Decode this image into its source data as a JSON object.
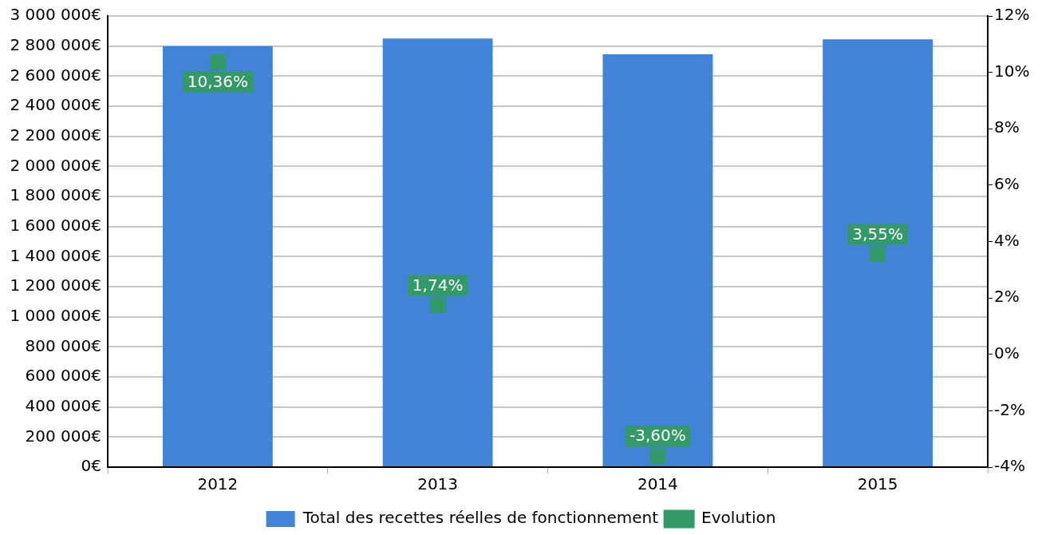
{
  "chart_data": {
    "type": "bar",
    "categories": [
      "2012",
      "2013",
      "2014",
      "2015"
    ],
    "series": [
      {
        "name": "Total des recettes réelles de fonctionnement",
        "color": "#4183d7",
        "values": [
          2800000,
          2850000,
          2745000,
          2845000
        ]
      },
      {
        "name": "Evolution",
        "type": "scatter",
        "axis": "y2",
        "color": "#339966",
        "values": [
          10.36,
          1.74,
          -3.6,
          3.55
        ],
        "value_labels": [
          "10,36%",
          "1,74%",
          "-3,60%",
          "3,55%"
        ]
      }
    ],
    "ylim": [
      0,
      3000000
    ],
    "yticks": [
      {
        "value": 0,
        "label": "0€"
      },
      {
        "value": 200000,
        "label": "200 000€"
      },
      {
        "value": 400000,
        "label": "400 000€"
      },
      {
        "value": 600000,
        "label": "600 000€"
      },
      {
        "value": 800000,
        "label": "800 000€"
      },
      {
        "value": 1000000,
        "label": "1 000 000€"
      },
      {
        "value": 1200000,
        "label": "1 200 000€"
      },
      {
        "value": 1400000,
        "label": "1 400 000€"
      },
      {
        "value": 1600000,
        "label": "1 600 000€"
      },
      {
        "value": 1800000,
        "label": "1 800 000€"
      },
      {
        "value": 2000000,
        "label": "2 000 000€"
      },
      {
        "value": 2200000,
        "label": "2 200 000€"
      },
      {
        "value": 2400000,
        "label": "2 400 000€"
      },
      {
        "value": 2600000,
        "label": "2 600 000€"
      },
      {
        "value": 2800000,
        "label": "2 800 000€"
      },
      {
        "value": 3000000,
        "label": "3 000 000€"
      }
    ],
    "y2lim": [
      -4,
      12
    ],
    "y2ticks": [
      {
        "value": -4,
        "label": "-4%"
      },
      {
        "value": -2,
        "label": "-2%"
      },
      {
        "value": 0,
        "label": "0%"
      },
      {
        "value": 2,
        "label": "2%"
      },
      {
        "value": 4,
        "label": "4%"
      },
      {
        "value": 6,
        "label": "6%"
      },
      {
        "value": 8,
        "label": "8%"
      },
      {
        "value": 10,
        "label": "10%"
      },
      {
        "value": 12,
        "label": "12%"
      }
    ],
    "grid": "y",
    "legend": "bottom",
    "marker": "square"
  }
}
